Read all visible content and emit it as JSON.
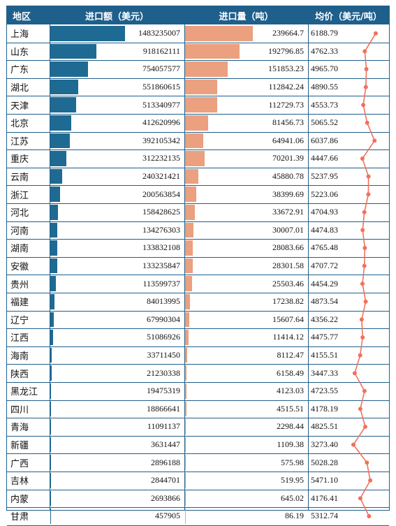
{
  "chart_data": {
    "type": "table",
    "headers": {
      "region": "地区",
      "amount": "进口额（美元）",
      "quantity": "进口量（吨）",
      "price": "均价（美元/吨）"
    },
    "colors": {
      "header": "#1f5f8b",
      "amount_bar": "#1f6a92",
      "quantity_bar": "#eba07f",
      "price_line": "#f0725c"
    },
    "rows": [
      {
        "region": "上海",
        "amount": "1483235007",
        "quantity": "239664.7",
        "price": "6188.79"
      },
      {
        "region": "山东",
        "amount": "918162111",
        "quantity": "192796.85",
        "price": "4762.33"
      },
      {
        "region": "广东",
        "amount": "754057577",
        "quantity": "151853.23",
        "price": "4965.70"
      },
      {
        "region": "湖北",
        "amount": "551860615",
        "quantity": "112842.24",
        "price": "4890.55"
      },
      {
        "region": "天津",
        "amount": "513340977",
        "quantity": "112729.73",
        "price": "4553.73"
      },
      {
        "region": "北京",
        "amount": "412620996",
        "quantity": "81456.73",
        "price": "5065.52"
      },
      {
        "region": "江苏",
        "amount": "392105342",
        "quantity": "64941.06",
        "price": "6037.86"
      },
      {
        "region": "重庆",
        "amount": "312232135",
        "quantity": "70201.39",
        "price": "4447.66"
      },
      {
        "region": "云南",
        "amount": "240321421",
        "quantity": "45880.78",
        "price": "5237.95"
      },
      {
        "region": "浙江",
        "amount": "200563854",
        "quantity": "38399.69",
        "price": "5223.06"
      },
      {
        "region": "河北",
        "amount": "158428625",
        "quantity": "33672.91",
        "price": "4704.93"
      },
      {
        "region": "河南",
        "amount": "134276303",
        "quantity": "30007.01",
        "price": "4474.83"
      },
      {
        "region": "湖南",
        "amount": "133832108",
        "quantity": "28083.66",
        "price": "4765.48"
      },
      {
        "region": "安徽",
        "amount": "133235847",
        "quantity": "28301.58",
        "price": "4707.72"
      },
      {
        "region": "贵州",
        "amount": "113599737",
        "quantity": "25503.46",
        "price": "4454.29"
      },
      {
        "region": "福建",
        "amount": "84013995",
        "quantity": "17238.82",
        "price": "4873.54"
      },
      {
        "region": "辽宁",
        "amount": "67990304",
        "quantity": "15607.64",
        "price": "4356.22"
      },
      {
        "region": "江西",
        "amount": "51086926",
        "quantity": "11414.12",
        "price": "4475.77"
      },
      {
        "region": "海南",
        "amount": "33711450",
        "quantity": "8112.47",
        "price": "4155.51"
      },
      {
        "region": "陕西",
        "amount": "21230338",
        "quantity": "6158.49",
        "price": "3447.33"
      },
      {
        "region": "黑龙江",
        "amount": "19475319",
        "quantity": "4123.03",
        "price": "4723.55"
      },
      {
        "region": "四川",
        "amount": "18866641",
        "quantity": "4515.51",
        "price": "4178.19"
      },
      {
        "region": "青海",
        "amount": "11091137",
        "quantity": "2298.44",
        "price": "4825.51"
      },
      {
        "region": "新疆",
        "amount": "3631447",
        "quantity": "1109.38",
        "price": "3273.40"
      },
      {
        "region": "广西",
        "amount": "2896188",
        "quantity": "575.98",
        "price": "5028.28"
      },
      {
        "region": "吉林",
        "amount": "2844701",
        "quantity": "519.95",
        "price": "5471.10"
      },
      {
        "region": "内蒙",
        "amount": "2693866",
        "quantity": "645.02",
        "price": "4176.41"
      },
      {
        "region": "甘肃",
        "amount": "457905",
        "quantity": "86.19",
        "price": "5312.74"
      }
    ]
  }
}
